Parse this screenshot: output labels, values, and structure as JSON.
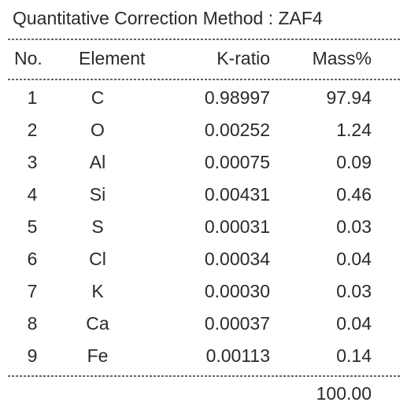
{
  "header": {
    "title": "Quantitative Correction Method : ZAF4"
  },
  "table": {
    "columns": [
      "No.",
      "Element",
      "K-ratio",
      "Mass%"
    ],
    "rows": [
      [
        "1",
        "C",
        "0.98997",
        "97.94"
      ],
      [
        "2",
        "O",
        "0.00252",
        "1.24"
      ],
      [
        "3",
        "Al",
        "0.00075",
        "0.09"
      ],
      [
        "4",
        "Si",
        "0.00431",
        "0.46"
      ],
      [
        "5",
        "S",
        "0.00031",
        "0.03"
      ],
      [
        "6",
        "Cl",
        "0.00034",
        "0.04"
      ],
      [
        "7",
        "K",
        "0.00030",
        "0.03"
      ],
      [
        "8",
        "Ca",
        "0.00037",
        "0.04"
      ],
      [
        "9",
        "Fe",
        "0.00113",
        "0.14"
      ]
    ],
    "total": "100.00"
  }
}
